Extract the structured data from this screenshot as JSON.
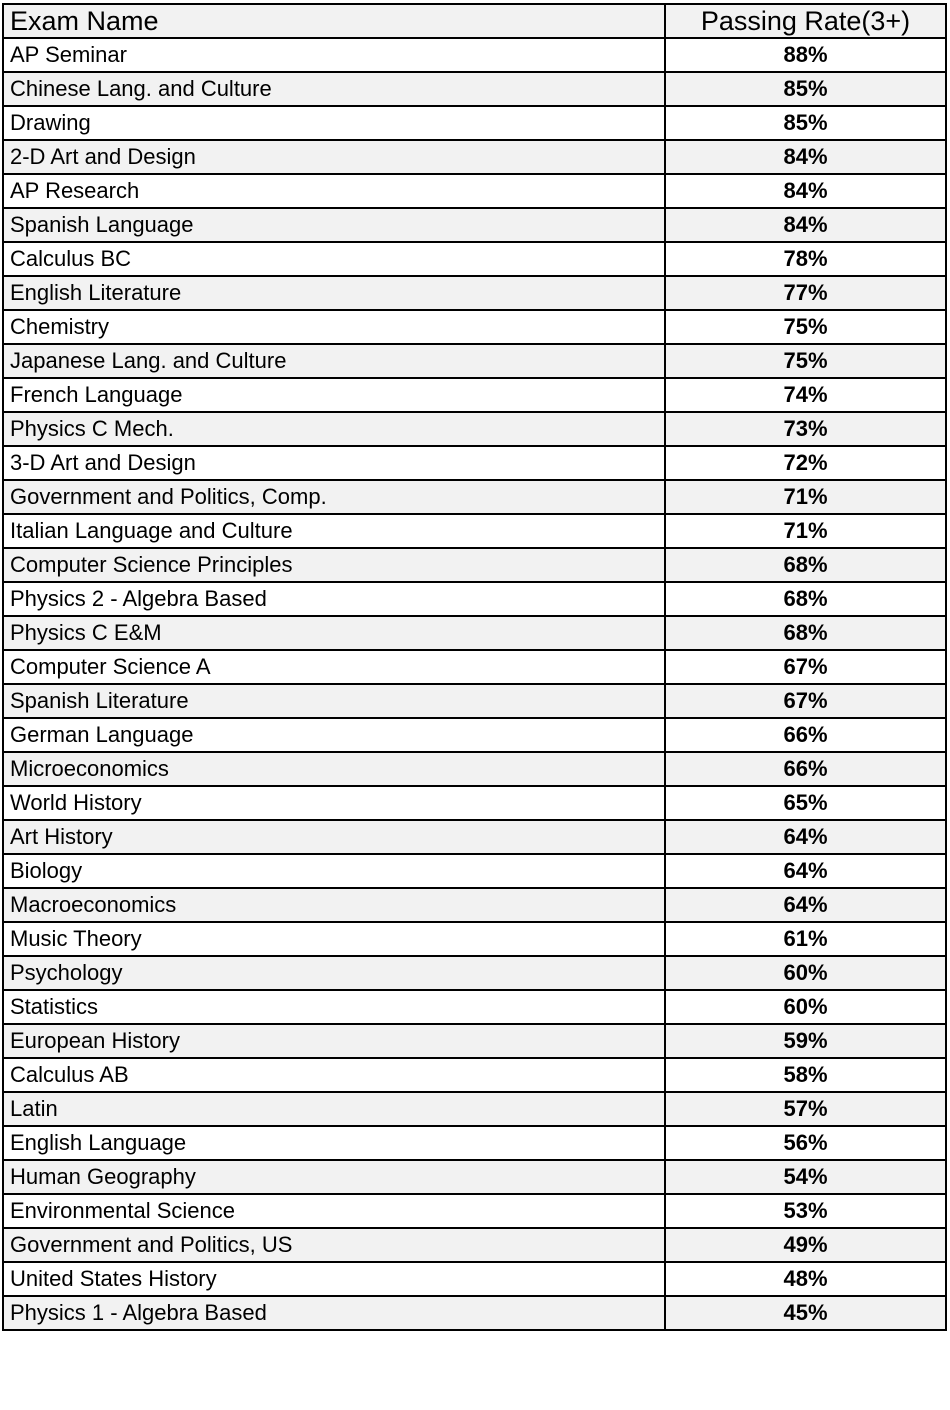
{
  "table": {
    "headers": [
      "Exam Name",
      "Passing Rate(3+)"
    ],
    "rows": [
      [
        "AP Seminar",
        "88%"
      ],
      [
        "Chinese Lang. and Culture",
        "85%"
      ],
      [
        "Drawing",
        "85%"
      ],
      [
        "2-D Art and Design",
        "84%"
      ],
      [
        "AP Research",
        "84%"
      ],
      [
        "Spanish Language",
        "84%"
      ],
      [
        "Calculus BC",
        "78%"
      ],
      [
        "English Literature",
        "77%"
      ],
      [
        "Chemistry",
        "75%"
      ],
      [
        "Japanese Lang. and Culture",
        "75%"
      ],
      [
        "French Language",
        "74%"
      ],
      [
        "Physics C Mech.",
        "73%"
      ],
      [
        "3-D Art and Design",
        "72%"
      ],
      [
        "Government and Politics, Comp.",
        "71%"
      ],
      [
        "Italian Language and Culture",
        "71%"
      ],
      [
        "Computer Science Principles",
        "68%"
      ],
      [
        "Physics 2 - Algebra Based",
        "68%"
      ],
      [
        "Physics C E&M",
        "68%"
      ],
      [
        "Computer Science A",
        "67%"
      ],
      [
        "Spanish Literature",
        "67%"
      ],
      [
        "German Language",
        "66%"
      ],
      [
        "Microeconomics",
        "66%"
      ],
      [
        "World History",
        "65%"
      ],
      [
        "Art History",
        "64%"
      ],
      [
        "Biology",
        "64%"
      ],
      [
        "Macroeconomics",
        "64%"
      ],
      [
        "Music Theory",
        "61%"
      ],
      [
        "Psychology",
        "60%"
      ],
      [
        "Statistics",
        "60%"
      ],
      [
        "European History",
        "59%"
      ],
      [
        "Calculus AB",
        "58%"
      ],
      [
        "Latin",
        "57%"
      ],
      [
        "English Language",
        "56%"
      ],
      [
        "Human Geography",
        "54%"
      ],
      [
        "Environmental Science",
        "53%"
      ],
      [
        "Government and Politics, US",
        "49%"
      ],
      [
        "United States History",
        "48%"
      ],
      [
        "Physics 1 - Algebra Based",
        "45%"
      ]
    ]
  },
  "colors": {
    "stripe": "#f2f2f2",
    "border": "#000000"
  }
}
